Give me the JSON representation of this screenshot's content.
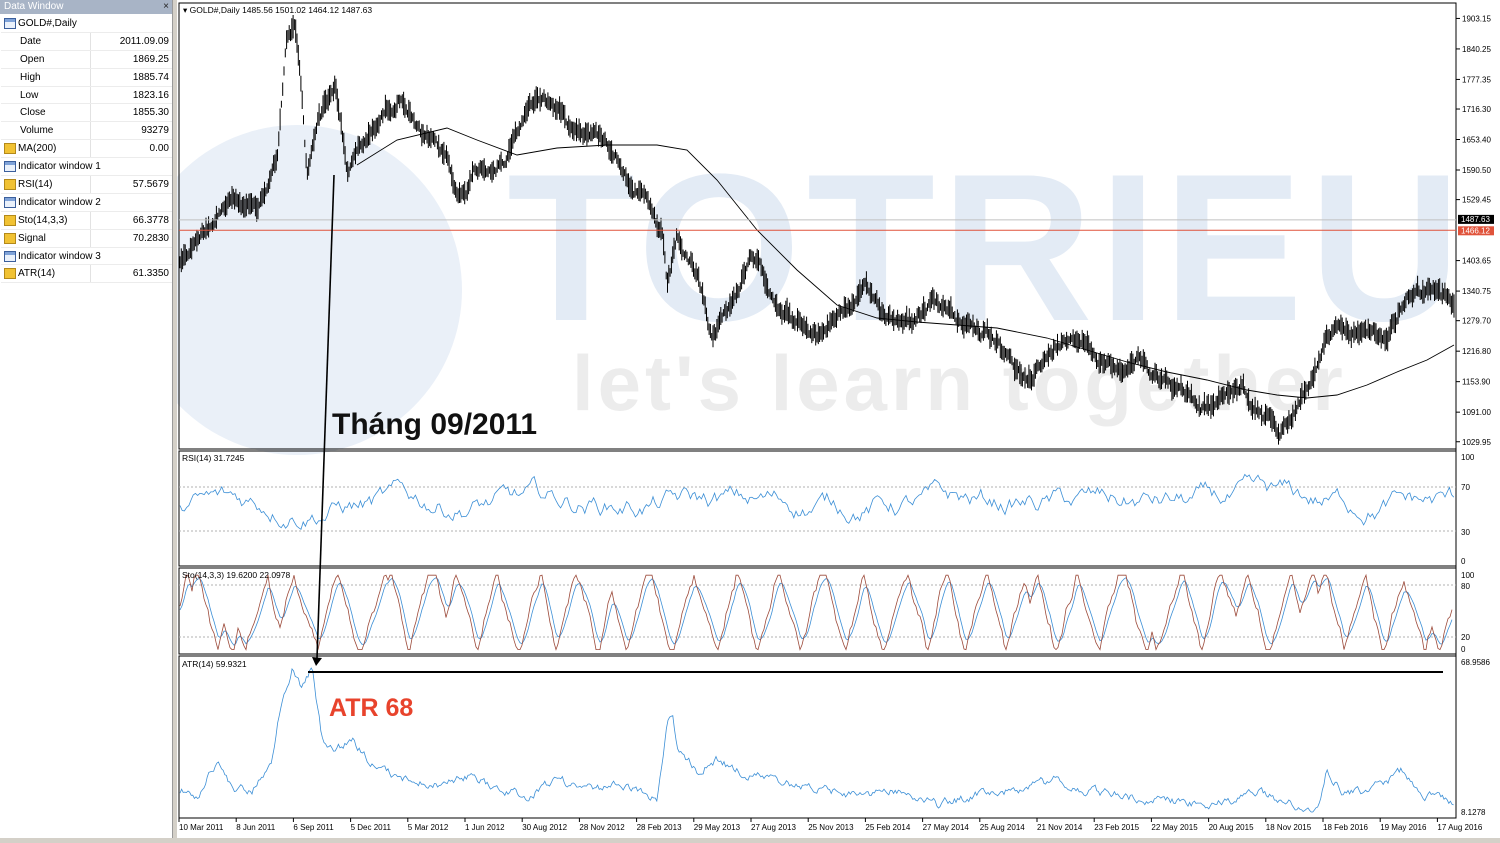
{
  "data_window": {
    "title": "Data Window",
    "close_glyph": "×",
    "rows": [
      {
        "label": "GOLD#,Daily",
        "value": "",
        "icon": "window-icon",
        "header": true
      },
      {
        "label": "Date",
        "value": "2011.09.09"
      },
      {
        "label": "Open",
        "value": "1869.25"
      },
      {
        "label": "High",
        "value": "1885.74"
      },
      {
        "label": "Low",
        "value": "1823.16"
      },
      {
        "label": "Close",
        "value": "1855.30"
      },
      {
        "label": "Volume",
        "value": "93279"
      },
      {
        "label": "MA(200)",
        "value": "0.00",
        "icon": "indicator-icon"
      },
      {
        "label": "Indicator window 1",
        "value": "",
        "icon": "window-icon",
        "header": true
      },
      {
        "label": "RSI(14)",
        "value": "57.5679",
        "icon": "indicator-icon"
      },
      {
        "label": "Indicator window 2",
        "value": "",
        "icon": "window-icon",
        "header": true
      },
      {
        "label": "Sto(14,3,3)",
        "value": "66.3778",
        "icon": "indicator-icon"
      },
      {
        "label": "Signal",
        "value": "70.2830",
        "icon": "indicator-icon"
      },
      {
        "label": "Indicator window 3",
        "value": "",
        "icon": "window-icon",
        "header": true
      },
      {
        "label": "ATR(14)",
        "value": "61.3350",
        "icon": "indicator-icon"
      }
    ]
  },
  "main_chart": {
    "header": "GOLD#,Daily  1485.56 1501.02 1464.12 1487.63",
    "price_axis": [
      "1903.15",
      "1840.25",
      "1777.35",
      "1716.30",
      "1653.40",
      "1590.50",
      "1529.45",
      "1403.65",
      "1340.75",
      "1279.70",
      "1216.80",
      "1153.90",
      "1091.00",
      "1029.95"
    ],
    "price_min": 1015,
    "price_max": 1935,
    "current_price": "1487.63",
    "bid_price": "1466.12",
    "ma_label": "MA(200)",
    "colors": {
      "candles": "#000000",
      "ma": "#000000",
      "price_line": "#e0533b",
      "bid_tag": "#e0533b",
      "current_tag": "#000000"
    }
  },
  "watermark": {
    "brand": "TOTRIEU",
    "tagline": "let's learn together"
  },
  "rsi_panel": {
    "header": "RSI(14) 31.7245",
    "levels": [
      "100",
      "70",
      "30",
      "0"
    ],
    "color": "#3c8fd6"
  },
  "sto_panel": {
    "header": "Sto(14,3,3) 19.6200 22.0978",
    "levels": [
      "100",
      "80",
      "20",
      "0"
    ],
    "main_color": "#9c4a3a",
    "signal_color": "#3c8fd6"
  },
  "atr_panel": {
    "header": "ATR(14) 59.9321",
    "axis_top": "68.9586",
    "axis_bottom": "8.1278",
    "color": "#3c8fd6"
  },
  "annotations": {
    "month_label": "Tháng 09/2011",
    "atr_label": "ATR 68",
    "atr_label_color": "#e8432c"
  },
  "x_axis": [
    "10 Mar 2011",
    "8 Jun 2011",
    "6 Sep 2011",
    "5 Dec 2011",
    "5 Mar 2012",
    "1 Jun 2012",
    "30 Aug 2012",
    "28 Nov 2012",
    "28 Feb 2013",
    "29 May 2013",
    "27 Aug 2013",
    "25 Nov 2013",
    "25 Feb 2014",
    "27 May 2014",
    "25 Aug 2014",
    "21 Nov 2014",
    "23 Feb 2015",
    "22 May 2015",
    "20 Aug 2015",
    "18 Nov 2015",
    "18 Feb 2016",
    "19 May 2016",
    "17 Aug 2016"
  ],
  "chart_data": {
    "type": "line",
    "title": "GOLD#,Daily",
    "x": [
      "10 Mar 2011",
      "8 Jun 2011",
      "6 Sep 2011",
      "5 Dec 2011",
      "5 Mar 2012",
      "1 Jun 2012",
      "30 Aug 2012",
      "28 Nov 2012",
      "28 Feb 2013",
      "29 May 2013",
      "27 Aug 2013",
      "25 Nov 2013",
      "25 Feb 2014",
      "27 May 2014",
      "25 Aug 2014",
      "21 Nov 2014",
      "23 Feb 2015",
      "22 May 2015",
      "20 Aug 2015",
      "18 Nov 2015",
      "18 Feb 2016",
      "19 May 2016",
      "17 Aug 2016"
    ],
    "series": [
      {
        "name": "GOLD#,Daily",
        "values": [
          1420,
          1530,
          1880,
          1660,
          1690,
          1580,
          1650,
          1700,
          1580,
          1390,
          1380,
          1250,
          1330,
          1290,
          1280,
          1200,
          1220,
          1180,
          1130,
          1080,
          1200,
          1280,
          1350
        ]
      },
      {
        "name": "MA(200)",
        "values": [
          null,
          null,
          1580,
          1640,
          1690,
          1680,
          1640,
          1660,
          1660,
          1560,
          1460,
          1380,
          1300,
          1290,
          1285,
          1260,
          1230,
          1210,
          1190,
          1150,
          1135,
          1170,
          1230
        ]
      },
      {
        "name": "RSI(14)",
        "values": [
          70,
          55,
          75,
          50,
          55,
          45,
          70,
          55,
          40,
          45,
          60,
          40,
          65,
          50,
          55,
          50,
          60,
          50,
          45,
          40,
          70,
          55,
          45
        ]
      },
      {
        "name": "ATR(14)",
        "values": [
          20,
          25,
          68,
          40,
          30,
          25,
          25,
          28,
          25,
          52,
          30,
          28,
          25,
          25,
          20,
          22,
          22,
          20,
          22,
          18,
          30,
          22,
          20
        ]
      }
    ],
    "ylim": [
      1029.95,
      1903.15
    ]
  }
}
